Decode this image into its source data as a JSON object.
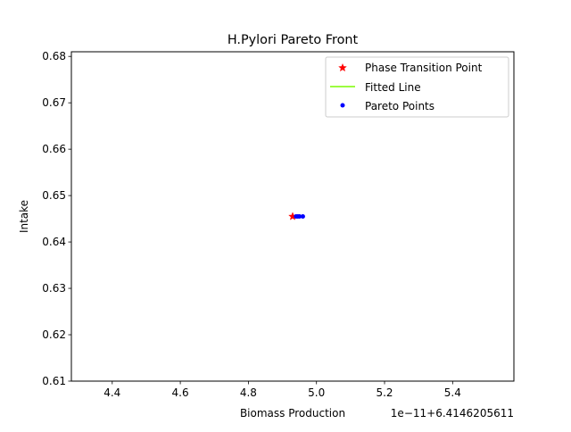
{
  "chart_data": {
    "type": "scatter",
    "title": "H.Pylori Pareto Front",
    "xlabel": "Biomass Production",
    "ylabel": "Intake",
    "x_offset_text": "1e−11+6.4146205611",
    "xlim": [
      4.28,
      5.58
    ],
    "ylim": [
      0.61,
      0.681
    ],
    "x_ticks": [
      4.4,
      4.6,
      4.8,
      5.0,
      5.2,
      5.4
    ],
    "x_tick_labels": [
      "4.4",
      "4.6",
      "4.8",
      "5.0",
      "5.2",
      "5.4"
    ],
    "y_ticks": [
      0.61,
      0.62,
      0.63,
      0.64,
      0.65,
      0.66,
      0.67,
      0.68
    ],
    "y_tick_labels": [
      "0.61",
      "0.62",
      "0.63",
      "0.64",
      "0.65",
      "0.66",
      "0.67",
      "0.68"
    ],
    "legend_position": "top-right",
    "series": [
      {
        "name": "Phase Transition Point",
        "marker": "star",
        "color": "#ff0000",
        "x": [
          4.93
        ],
        "y": [
          0.6455
        ]
      },
      {
        "name": "Fitted Line",
        "marker": "line",
        "color": "#7cfc00",
        "x": [],
        "y": []
      },
      {
        "name": "Pareto Points",
        "marker": "dot",
        "color": "#0000ff",
        "x": [
          4.94,
          4.945,
          4.95,
          4.96
        ],
        "y": [
          0.6455,
          0.6455,
          0.6455,
          0.6455
        ]
      }
    ]
  }
}
